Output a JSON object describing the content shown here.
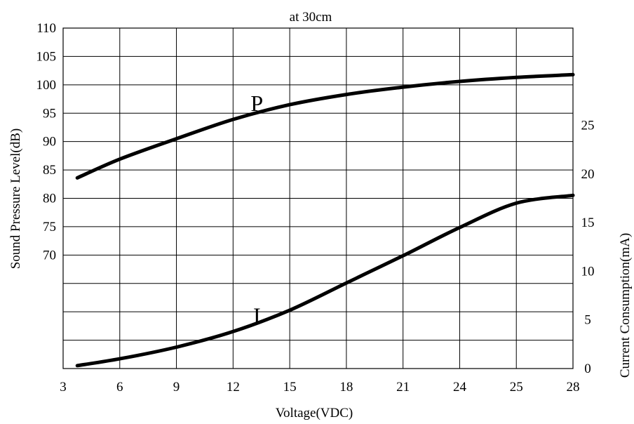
{
  "chart_data": {
    "type": "line",
    "title": "at 30cm",
    "xlabel": "Voltage(VDC)",
    "ylabel_left": "Sound Pressure Level(dB)",
    "ylabel_right": "Current Consumption(mA)",
    "grid": true,
    "x_categories": [
      "3",
      "6",
      "9",
      "12",
      "15",
      "18",
      "21",
      "24",
      "25",
      "28"
    ],
    "y_left_ticks": [
      70,
      75,
      80,
      85,
      90,
      95,
      100,
      105,
      110
    ],
    "y_left_range": [
      50,
      110
    ],
    "y_right_ticks": [
      0,
      5,
      10,
      15,
      20,
      25
    ],
    "y_right_range": [
      0,
      35
    ],
    "series": [
      {
        "name": "P",
        "axis": "left",
        "x_index": [
          0.25,
          1,
          2,
          3,
          4,
          5,
          6,
          7,
          8,
          9
        ],
        "values": [
          83.6,
          86.9,
          90.5,
          93.9,
          96.5,
          98.3,
          99.6,
          100.6,
          101.3,
          101.8
        ]
      },
      {
        "name": "I",
        "axis": "right",
        "x_index": [
          0.25,
          1,
          2,
          3,
          4,
          5,
          6,
          7,
          8,
          9
        ],
        "values": [
          0.3,
          1.0,
          2.2,
          3.8,
          6.0,
          8.8,
          11.6,
          14.5,
          17.0,
          17.8
        ]
      }
    ]
  }
}
